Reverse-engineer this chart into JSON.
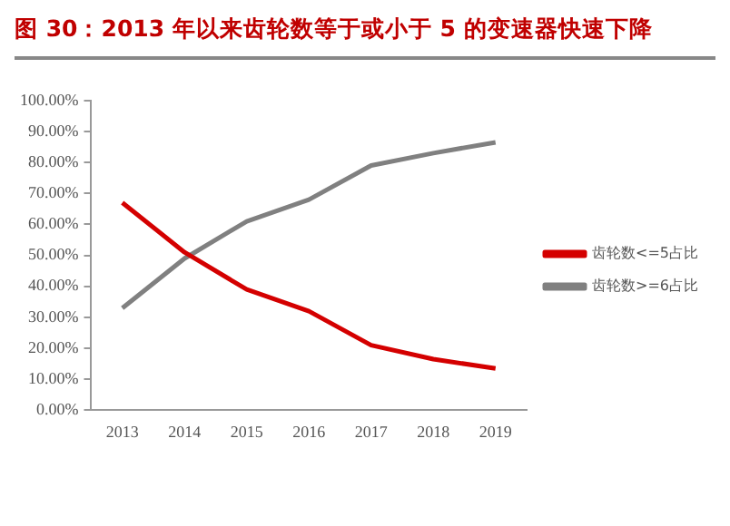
{
  "chart_data": {
    "type": "line",
    "title": "图 30：2013 年以来齿轮数等于或小于 5 的变速器快速下降",
    "categories": [
      "2013",
      "2014",
      "2015",
      "2016",
      "2017",
      "2018",
      "2019"
    ],
    "series": [
      {
        "name": "齿轮数<=5占比",
        "color": "#d40000",
        "values": [
          67,
          51,
          39,
          32,
          21,
          16.5,
          13.5
        ]
      },
      {
        "name": "齿轮数>=6占比",
        "color": "#808080",
        "values": [
          33,
          49,
          61,
          68,
          79,
          83,
          86.5
        ]
      }
    ],
    "ylim": [
      0,
      100
    ],
    "yticks": [
      {
        "value": 0,
        "label": "0.00%"
      },
      {
        "value": 10,
        "label": "10.00%"
      },
      {
        "value": 20,
        "label": "20.00%"
      },
      {
        "value": 30,
        "label": "30.00%"
      },
      {
        "value": 40,
        "label": "40.00%"
      },
      {
        "value": 50,
        "label": "50.00%"
      },
      {
        "value": 60,
        "label": "60.00%"
      },
      {
        "value": 70,
        "label": "70.00%"
      },
      {
        "value": 80,
        "label": "80.00%"
      },
      {
        "value": 90,
        "label": "90.00%"
      },
      {
        "value": 100,
        "label": "100.00%"
      }
    ],
    "grid": false,
    "legend": "right",
    "marker": "none",
    "line_style": "solid"
  }
}
